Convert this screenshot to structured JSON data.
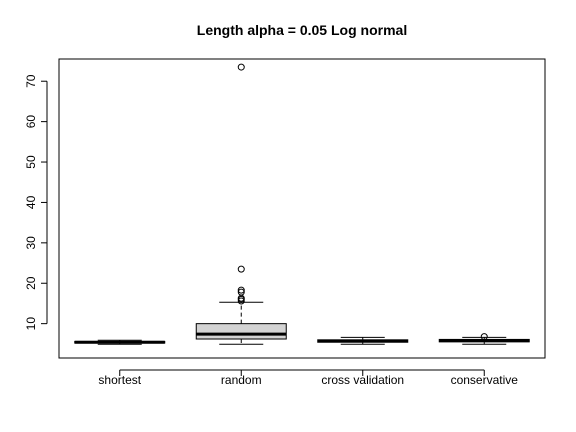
{
  "chart_data": {
    "type": "boxplot",
    "title": "Length alpha = 0.05 Log normal",
    "xlabel": "",
    "ylabel": "",
    "categories": [
      "shortest",
      "random",
      "cross validation",
      "conservative"
    ],
    "ylim": [
      1.5,
      75.5
    ],
    "yticks": [
      10,
      20,
      30,
      40,
      50,
      60,
      70
    ],
    "grid": false,
    "boxes": [
      {
        "name": "shortest",
        "whisker_low": 4.9,
        "q1": 5.2,
        "median": 5.4,
        "q3": 5.6,
        "whisker_high": 5.9,
        "outliers": []
      },
      {
        "name": "random",
        "whisker_low": 4.9,
        "q1": 6.2,
        "median": 7.4,
        "q3": 10.0,
        "whisker_high": 15.3,
        "outliers": [
          15.6,
          16.0,
          16.3,
          17.8,
          18.3,
          23.5,
          73.5
        ]
      },
      {
        "name": "cross validation",
        "whisker_low": 4.9,
        "q1": 5.4,
        "median": 5.7,
        "q3": 6.0,
        "whisker_high": 6.6,
        "outliers": []
      },
      {
        "name": "conservative",
        "whisker_low": 4.9,
        "q1": 5.5,
        "median": 5.8,
        "q3": 6.1,
        "whisker_high": 6.6,
        "outliers": [
          6.8
        ]
      }
    ],
    "colors": {
      "box_fill": "#d3d3d3",
      "stroke": "#000000",
      "background": "#ffffff"
    }
  }
}
